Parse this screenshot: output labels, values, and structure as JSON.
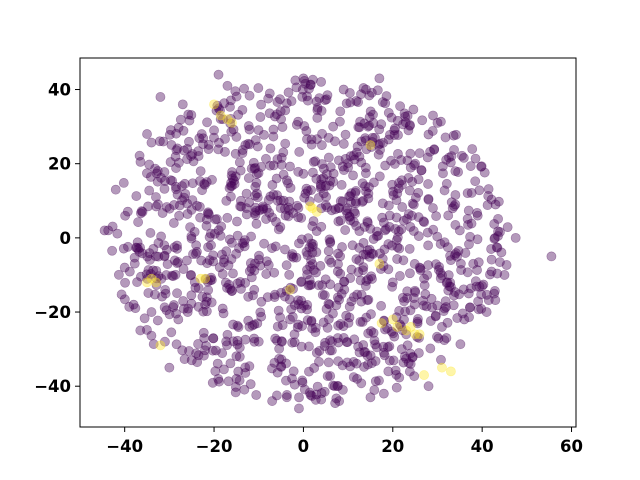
{
  "chart_data": {
    "type": "scatter",
    "title": "",
    "xlabel": "",
    "ylabel": "",
    "xlim": [
      -50,
      61
    ],
    "ylim": [
      -51,
      48.5
    ],
    "xticks": [
      -40,
      -20,
      0,
      20,
      40,
      60
    ],
    "yticks": [
      -40,
      -20,
      0,
      20,
      40
    ],
    "xtick_labels": [
      "−40",
      "−20",
      "0",
      "20",
      "40",
      "60"
    ],
    "ytick_labels": [
      "−40",
      "−20",
      "0",
      "20",
      "40"
    ],
    "grid": false,
    "legend": "none",
    "marker_alpha": 0.4,
    "series": [
      {
        "color": "#440154",
        "random_seed": 7,
        "generated_points": 1150,
        "x": [
          -44.5,
          -42,
          -40,
          -38,
          -37,
          -35,
          -34,
          -33,
          -31,
          -29,
          -27,
          -25,
          -23,
          -21,
          -19,
          -17,
          -15,
          -13,
          -11,
          -9,
          -7,
          -5,
          -3,
          -1,
          1,
          3,
          5,
          7,
          9,
          11,
          13,
          15,
          17,
          19,
          21,
          23,
          25,
          27,
          29,
          31,
          33,
          35,
          37,
          39,
          41,
          43,
          45,
          47.5,
          55.5,
          -36,
          -28,
          -18,
          -10,
          0,
          8,
          16,
          26,
          34,
          -30,
          -14,
          4,
          20,
          36,
          -26,
          -6,
          12,
          30,
          -22,
          2,
          22,
          -12,
          10,
          -2,
          14,
          -8,
          6,
          18,
          -4,
          24,
          -16,
          28,
          -20,
          32,
          38,
          -24,
          -32,
          40,
          42
        ],
        "y": [
          2,
          13,
          -8,
          -18,
          -3,
          28,
          -20,
          11,
          -28,
          4,
          36,
          -33,
          18,
          -6,
          44,
          41,
          -38,
          25,
          -14,
          8,
          -44,
          32,
          -22,
          -46,
          37,
          -31,
          14,
          -40,
          40,
          -2,
          26,
          -43,
          43,
          -36,
          12,
          -26,
          20,
          -11,
          33,
          -24,
          -6,
          2,
          -15,
          6,
          -20,
          9,
          -10,
          0,
          -5,
          7,
          -22,
          32,
          -28,
          43,
          -44,
          27,
          -8,
          18,
          -35,
          10,
          3,
          -12,
          -22,
          24,
          16,
          -38,
          31,
          -18,
          -4,
          -30,
          -9,
          19,
          -26,
          40,
          -16,
          -1,
          -42,
          6,
          -34,
          14,
          -40,
          29,
          -27,
          -7,
          -2,
          38,
          -13,
          -3
        ]
      },
      {
        "color": "#fde725",
        "x": [
          -20,
          -18.5,
          -17,
          -16,
          -23,
          -34,
          -33,
          -35,
          -32,
          -22,
          2,
          3,
          1.5,
          15,
          -3,
          17,
          17.5,
          23,
          24,
          25,
          27,
          31,
          33,
          20,
          21,
          26
        ],
        "y": [
          36,
          33,
          32,
          31,
          -11,
          -11,
          -12,
          -12,
          -29,
          -11,
          8,
          7,
          8.5,
          25,
          -14,
          -7,
          -23,
          -25,
          -24,
          -26,
          -37,
          -35,
          -36,
          -22,
          -24,
          -26
        ]
      }
    ]
  }
}
